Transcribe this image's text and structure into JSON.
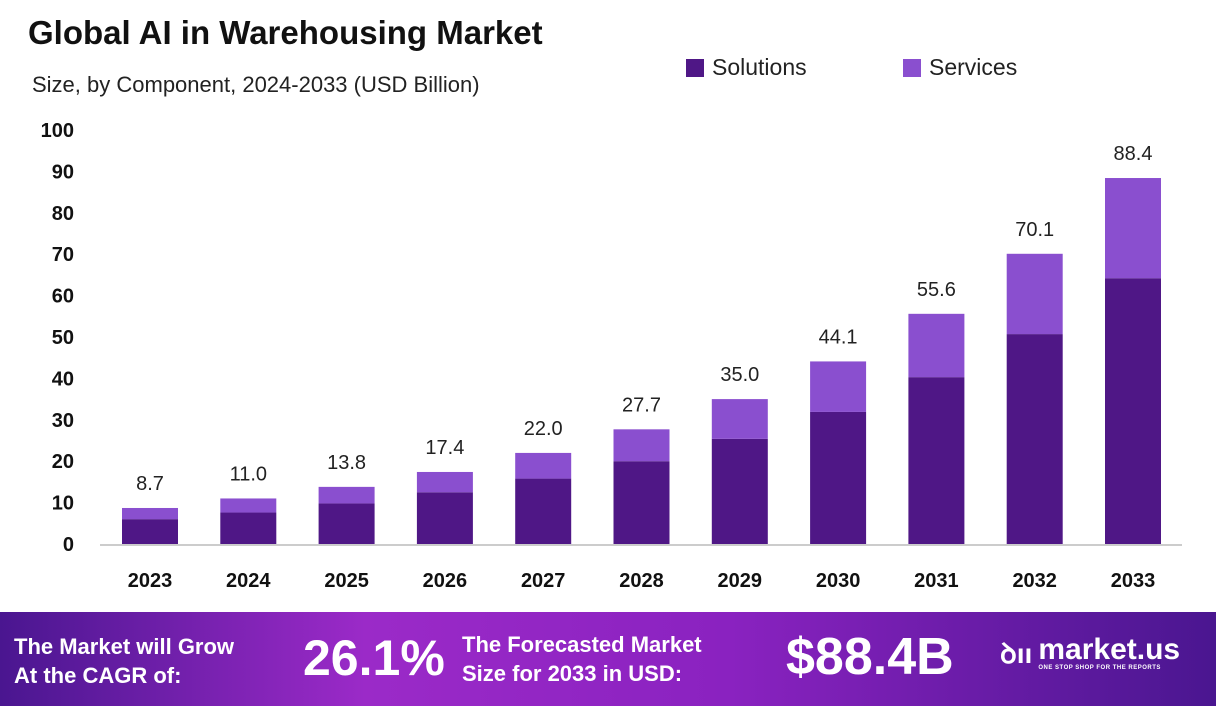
{
  "chart_data": {
    "type": "bar",
    "stacked": true,
    "title": "Global AI in Warehousing Market",
    "subtitle": "Size, by Component, 2024-2033 (USD Billion)",
    "categories": [
      "2023",
      "2024",
      "2025",
      "2026",
      "2027",
      "2028",
      "2029",
      "2030",
      "2031",
      "2032",
      "2033"
    ],
    "series": [
      {
        "name": "Solutions",
        "color": "#4f1786",
        "values": [
          6.0,
          7.6,
          9.8,
          12.5,
          15.8,
          20.0,
          25.4,
          31.9,
          40.3,
          50.7,
          64.2
        ]
      },
      {
        "name": "Services",
        "color": "#8a4fcf",
        "values": [
          2.7,
          3.4,
          4.0,
          4.9,
          6.2,
          7.7,
          9.6,
          12.2,
          15.3,
          19.4,
          24.2
        ]
      }
    ],
    "totals": [
      "8.7",
      "11.0",
      "13.8",
      "17.4",
      "22.0",
      "27.7",
      "35.0",
      "44.1",
      "55.6",
      "70.1",
      "88.4"
    ],
    "ylim": [
      0,
      100
    ],
    "yticks": [
      "0",
      "10",
      "20",
      "30",
      "40",
      "50",
      "60",
      "70",
      "80",
      "90",
      "100"
    ],
    "grid": false,
    "legend_position": "top-right"
  },
  "banner": {
    "cagr_label_1": "The Market will Grow",
    "cagr_label_2": "At the CAGR of:",
    "cagr_value": "26.1%",
    "forecast_label_1": "The Forecasted Market",
    "forecast_label_2": "Size for 2033 in USD:",
    "forecast_value": "$88.4B",
    "logo_name": "market.us",
    "logo_tagline": "ONE STOP SHOP FOR THE REPORTS"
  }
}
